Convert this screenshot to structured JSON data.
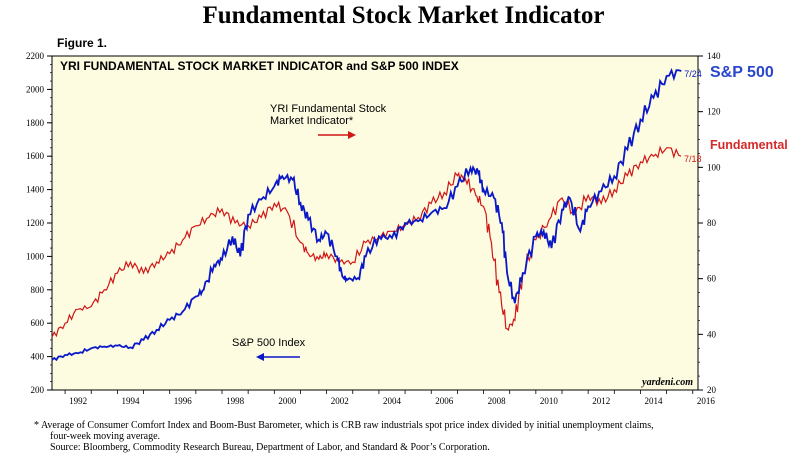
{
  "title": "Fundamental Stock Market Indicator",
  "figure_label": "Figure 1.",
  "side_labels": {
    "sp500": "S&P 500",
    "fundamental": "Fundamental"
  },
  "footnotes": {
    "line1": "*  Average of Consumer Comfort Index and Boom-Bust Barometer, which is CRB raw industrials spot price index divided by initial unemployment claims,",
    "line2": "four-week moving average.",
    "line3": "Source: Bloomberg, Commodity Research Bureau, Department of Labor, and Standard & Poor’s Corporation."
  },
  "colors": {
    "sp500": "#0a18c8",
    "fundamental": "#d01616",
    "plot_bg": "#fdfbe0",
    "side_sp": "#2b47c9",
    "side_fund": "#d42a2a"
  },
  "chart_data": {
    "type": "line",
    "title": "YRI FUNDAMENTAL STOCK MARKET INDICATOR and S&P 500 INDEX",
    "x_range": [
      1991.5,
      2016.2
    ],
    "x_ticks": [
      "1992",
      "1994",
      "1996",
      "1998",
      "2000",
      "2002",
      "2004",
      "2006",
      "2008",
      "2010",
      "2012",
      "2014",
      "2016"
    ],
    "y_left": {
      "range": [
        200,
        2200
      ],
      "ticks": [
        "200",
        "400",
        "600",
        "800",
        "1000",
        "1200",
        "1400",
        "1600",
        "1800",
        "2000",
        "2200"
      ]
    },
    "y_right": {
      "range": [
        20,
        140
      ],
      "ticks": [
        "20",
        "40",
        "60",
        "80",
        "100",
        "120",
        "140"
      ]
    },
    "grid": false,
    "annotations": {
      "fundamental_label": [
        "YRI Fundamental Stock",
        "Market Indicator*"
      ],
      "sp_label": "S&P 500 Index",
      "source": "yardeni.com",
      "sp_end": "7/24",
      "fund_end": "7/18"
    },
    "series": [
      {
        "name": "S&P 500 Index",
        "axis": "left",
        "x": [
          1991.5,
          1992,
          1992.5,
          1993,
          1993.5,
          1994,
          1994.5,
          1995,
          1995.5,
          1996,
          1996.5,
          1997,
          1997.3,
          1997.7,
          1998,
          1998.4,
          1998.7,
          1999,
          1999.5,
          2000,
          2000.3,
          2000.7,
          2001,
          2001.3,
          2001.7,
          2002,
          2002.4,
          2002.6,
          2002.8,
          2003.2,
          2003.5,
          2004,
          2004.5,
          2005,
          2005.5,
          2006,
          2006.5,
          2007,
          2007.5,
          2007.8,
          2008,
          2008.4,
          2008.7,
          2008.9,
          2009.2,
          2009.5,
          2010,
          2010.3,
          2010.6,
          2011,
          2011.3,
          2011.7,
          2012,
          2012.5,
          2013,
          2013.5,
          2014,
          2014.5,
          2015,
          2015.56
        ],
        "y": [
          380,
          410,
          420,
          450,
          460,
          465,
          455,
          500,
          560,
          620,
          670,
          760,
          800,
          950,
          980,
          1120,
          1000,
          1250,
          1340,
          1420,
          1480,
          1460,
          1320,
          1220,
          1100,
          1140,
          1000,
          880,
          860,
          870,
          1000,
          1120,
          1110,
          1200,
          1210,
          1260,
          1290,
          1420,
          1530,
          1500,
          1400,
          1350,
          1200,
          900,
          720,
          900,
          1120,
          1150,
          1050,
          1280,
          1350,
          1150,
          1300,
          1390,
          1480,
          1640,
          1820,
          1950,
          2080,
          2110
        ]
      },
      {
        "name": "YRI Fundamental Stock Market Indicator*",
        "axis": "right",
        "x": [
          1991.5,
          1992,
          1992.5,
          1993,
          1993.5,
          1994,
          1994.5,
          1995,
          1995.5,
          1996,
          1996.5,
          1997,
          1997.5,
          1998,
          1998.5,
          1999,
          1999.5,
          2000,
          2000.5,
          2001,
          2001.3,
          2001.7,
          2002,
          2002.5,
          2003,
          2003.5,
          2004,
          2004.5,
          2005,
          2005.5,
          2006,
          2006.5,
          2007,
          2007.3,
          2007.7,
          2008,
          2008.3,
          2008.6,
          2008.9,
          2009.2,
          2009.5,
          2010,
          2010.5,
          2011,
          2011.5,
          2012,
          2012.5,
          2013,
          2013.5,
          2014,
          2014.5,
          2015,
          2015.55
        ],
        "y": [
          39,
          44,
          49,
          50,
          56,
          62,
          66,
          62,
          66,
          69,
          74,
          79,
          82,
          85,
          80,
          79,
          82,
          87,
          84,
          73,
          69,
          67,
          69,
          66,
          66,
          73,
          75,
          77,
          79,
          82,
          87,
          91,
          97,
          96,
          90,
          86,
          73,
          55,
          42,
          45,
          62,
          74,
          81,
          89,
          83,
          90,
          87,
          92,
          97,
          102,
          104,
          107,
          104
        ]
      }
    ]
  }
}
